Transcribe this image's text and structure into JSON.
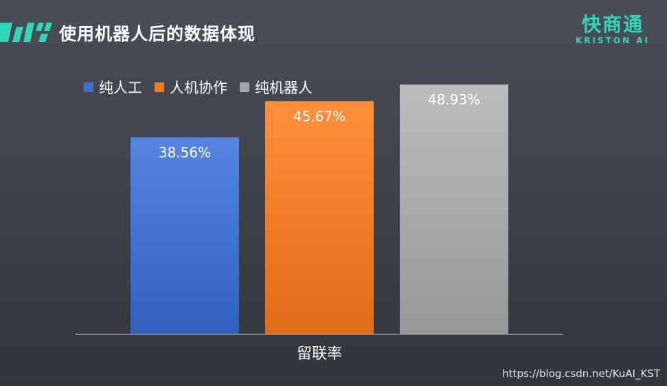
{
  "header": {
    "title": "使用机器人后的数据体现"
  },
  "brand": {
    "name": "快商通",
    "sub": "KRISTON AI",
    "color": "#2fd8b6"
  },
  "chart_data": {
    "type": "bar",
    "categories": [
      "留联率"
    ],
    "series": [
      {
        "name": "纯人工",
        "values": [
          38.56
        ],
        "label": "38.56%",
        "color": "#3f6fcb"
      },
      {
        "name": "人机协作",
        "values": [
          45.67
        ],
        "label": "45.67%",
        "color": "#f07a23"
      },
      {
        "name": "纯机器人",
        "values": [
          48.93
        ],
        "label": "48.93%",
        "color": "#a6a6a6"
      }
    ],
    "unit": "%",
    "legend_position": "top-left",
    "grid": false,
    "ylim": [
      0,
      50
    ]
  },
  "watermark": "https://blog.csdn.net/KuAI_KST"
}
